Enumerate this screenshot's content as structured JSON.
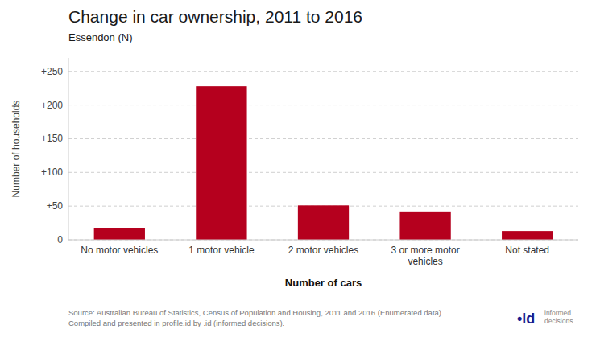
{
  "chart_data": {
    "type": "bar",
    "title": "Change in car ownership, 2011 to 2016",
    "subtitle": "Essendon (N)",
    "categories": [
      "No motor vehicles",
      "1 motor vehicle",
      "2 motor vehicles",
      "3 or more motor\nvehicles",
      "Not stated"
    ],
    "values": [
      17,
      228,
      51,
      42,
      13
    ],
    "color": "#B5001E",
    "ylabel": "Number of households",
    "xlabel": "Number of cars",
    "ylim": [
      0,
      270
    ],
    "yticks": [
      0,
      {
        "value": 50,
        "label": "+50"
      },
      {
        "value": 100,
        "label": "+100"
      },
      {
        "value": 150,
        "label": "+150"
      },
      {
        "value": 200,
        "label": "+200"
      },
      {
        "value": 250,
        "label": "+250"
      }
    ],
    "grid": true,
    "source": "Source: Australian Bureau of Statistics, Census of Population and Housing, 2011 and 2016 (Enumerated data)\nCompiled and presented in profile.id by .id (informed decisions).",
    "annotations": [
      "•id",
      "informed\ndecisions"
    ]
  }
}
